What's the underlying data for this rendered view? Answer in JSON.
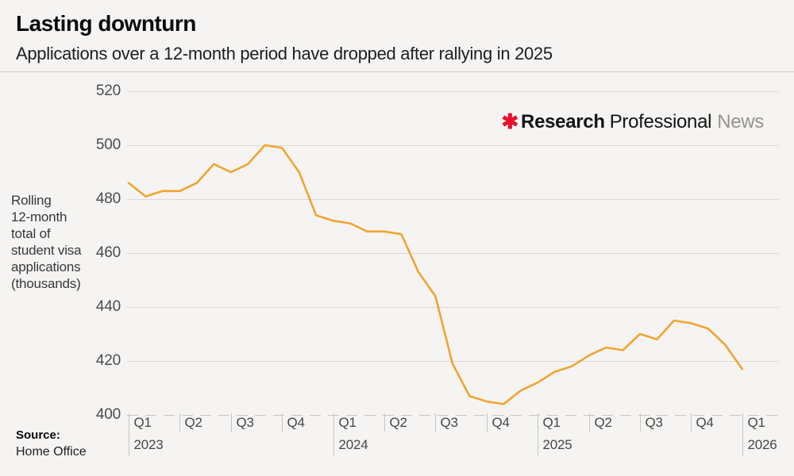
{
  "header": {
    "title": "Lasting downturn",
    "subtitle": "Applications over a 12-month period have dropped after rallying in 2025"
  },
  "logo": {
    "asterisk_icon": "✱",
    "part_bold": "Research",
    "part_regular": "Professional",
    "part_light": "News"
  },
  "y_axis": {
    "label_lines": [
      "Rolling",
      "12-month",
      "total of",
      "student visa",
      "applications",
      "(thousands)"
    ]
  },
  "source": {
    "label": "Source:",
    "value": "Home Office"
  },
  "colors": {
    "line": "#F1A431",
    "logo_red": "#E8112D",
    "logo_gray": "#96948F",
    "gridline": "#DCDAD7",
    "dashed_baseline": "#C8C6C3",
    "tick": "#C8C6C3"
  },
  "chart_data": {
    "type": "line",
    "title": "Lasting downturn",
    "subtitle": "Applications over a 12-month period have dropped after rallying in 2025",
    "ylabel": "Rolling 12-month total of student visa applications (thousands)",
    "ylim": [
      400,
      520
    ],
    "y_ticks": [
      520,
      500,
      480,
      460,
      440,
      420,
      400
    ],
    "grid": "horizontal gridlines; bottom (400) gridline dashed",
    "legend": "none",
    "x_unit": "monthly points, Jan 2023 to Jan 2026; axis labelled by quarter",
    "quarters": [
      {
        "label": "Q1",
        "year": "2023"
      },
      {
        "label": "Q2"
      },
      {
        "label": "Q3"
      },
      {
        "label": "Q4"
      },
      {
        "label": "Q1",
        "year": "2024"
      },
      {
        "label": "Q2"
      },
      {
        "label": "Q3"
      },
      {
        "label": "Q4"
      },
      {
        "label": "Q1",
        "year": "2025"
      },
      {
        "label": "Q2"
      },
      {
        "label": "Q3"
      },
      {
        "label": "Q4"
      },
      {
        "label": "Q1",
        "year": "2026"
      }
    ],
    "series": [
      {
        "name": "Rolling 12-month total of student visa applications (thousands)",
        "color": "#F1A431",
        "values": [
          486,
          481,
          483,
          483,
          486,
          493,
          490,
          493,
          500,
          499,
          490,
          474,
          472,
          471,
          468,
          468,
          467,
          453,
          444,
          419,
          407,
          405,
          404,
          409,
          412,
          416,
          418,
          422,
          425,
          424,
          430,
          428,
          435,
          434,
          432,
          426,
          417
        ]
      }
    ]
  }
}
